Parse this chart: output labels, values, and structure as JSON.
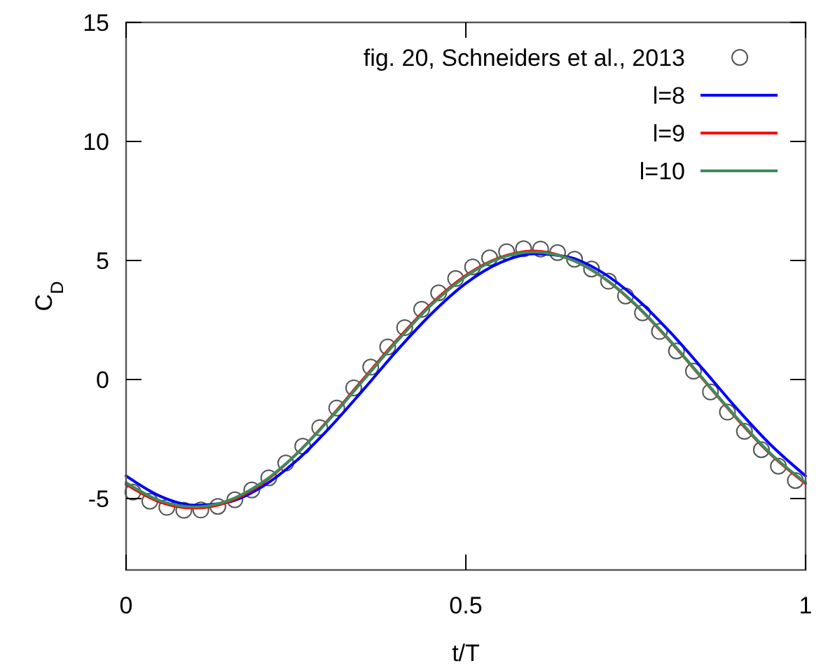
{
  "chart_data": {
    "type": "line",
    "xlabel": "t/T",
    "ylabel": "C$_{D}$",
    "xlim": [
      0,
      1
    ],
    "ylim": [
      -8,
      15
    ],
    "xticks": [
      0,
      0.5,
      1
    ],
    "yticks": [
      -5,
      0,
      5,
      10,
      15
    ],
    "grid": false,
    "legend": "top right",
    "series": [
      {
        "name": "fig. 20, Schneiders et al., 2013",
        "type": "scatter",
        "marker": "circle",
        "color": "#555555",
        "x": [
          0.01,
          0.035,
          0.06,
          0.085,
          0.11,
          0.135,
          0.16,
          0.185,
          0.21,
          0.235,
          0.26,
          0.285,
          0.31,
          0.335,
          0.36,
          0.385,
          0.41,
          0.435,
          0.46,
          0.485,
          0.51,
          0.535,
          0.56,
          0.585,
          0.61,
          0.635,
          0.66,
          0.685,
          0.71,
          0.735,
          0.76,
          0.785,
          0.81,
          0.835,
          0.86,
          0.885,
          0.91,
          0.935,
          0.96,
          0.985
        ],
        "values": [
          -4.73,
          -5.11,
          -5.37,
          -5.49,
          -5.48,
          -5.33,
          -5.05,
          -4.64,
          -4.13,
          -3.51,
          -2.8,
          -2.02,
          -1.2,
          -0.35,
          0.52,
          1.37,
          2.18,
          2.95,
          3.64,
          4.24,
          4.73,
          5.11,
          5.37,
          5.49,
          5.48,
          5.33,
          5.05,
          4.64,
          4.13,
          3.51,
          2.8,
          2.02,
          1.2,
          0.35,
          -0.52,
          -1.37,
          -2.18,
          -2.95,
          -3.64,
          -4.24
        ]
      },
      {
        "name": "l=8",
        "marker": "none",
        "line_style": "solid",
        "color": "#0000ff",
        "x": [
          0,
          0.05,
          0.1,
          0.15,
          0.2,
          0.25,
          0.3,
          0.35,
          0.4,
          0.45,
          0.5,
          0.55,
          0.6,
          0.65,
          0.7,
          0.75,
          0.8,
          0.85,
          0.9,
          0.95,
          1
        ],
        "values": [
          -4.05,
          -4.9,
          -5.28,
          -5.15,
          -4.51,
          -3.43,
          -2.01,
          -0.4,
          1.26,
          2.78,
          4.04,
          4.9,
          5.28,
          5.15,
          4.51,
          3.43,
          2.01,
          0.4,
          -1.26,
          -2.78,
          -4.05
        ]
      },
      {
        "name": "l=9",
        "marker": "none",
        "line_style": "solid",
        "color": "#ff0000",
        "x": [
          0,
          0.05,
          0.1,
          0.15,
          0.2,
          0.25,
          0.3,
          0.35,
          0.4,
          0.45,
          0.5,
          0.55,
          0.6,
          0.65,
          0.7,
          0.75,
          0.8,
          0.85,
          0.9,
          0.95,
          1
        ],
        "values": [
          -4.4,
          -5.15,
          -5.4,
          -5.14,
          -4.37,
          -3.15,
          -1.62,
          0.05,
          1.7,
          3.2,
          4.37,
          5.12,
          5.4,
          5.1,
          4.33,
          3.13,
          1.63,
          -0.02,
          -1.68,
          -3.18,
          -4.37
        ]
      },
      {
        "name": "l=10",
        "marker": "none",
        "line_style": "solid",
        "color": "#3c8c5c",
        "x": [
          0,
          0.05,
          0.1,
          0.15,
          0.2,
          0.25,
          0.3,
          0.35,
          0.4,
          0.45,
          0.5,
          0.55,
          0.6,
          0.65,
          0.7,
          0.75,
          0.8,
          0.85,
          0.9,
          0.95,
          1
        ],
        "values": [
          -4.33,
          -5.09,
          -5.35,
          -5.09,
          -4.33,
          -3.15,
          -1.65,
          0,
          1.65,
          3.15,
          4.33,
          5.09,
          5.35,
          5.09,
          4.33,
          3.15,
          1.65,
          0,
          -1.65,
          -3.15,
          -4.33
        ]
      }
    ]
  }
}
